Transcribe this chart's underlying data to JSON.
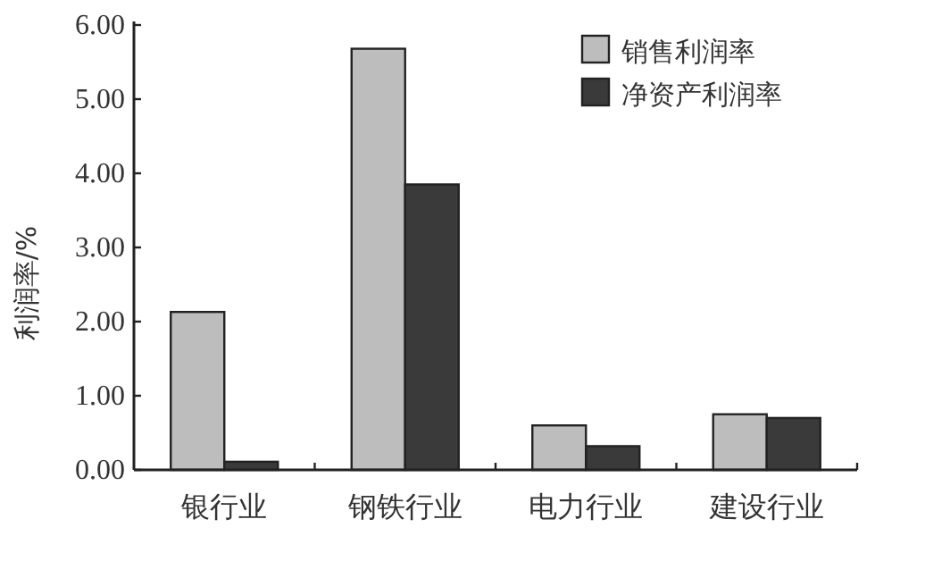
{
  "chart_data": {
    "type": "bar",
    "ylabel": "利润率/%",
    "categories": [
      "银行业",
      "钢铁行业",
      "电力行业",
      "建设行业"
    ],
    "series": [
      {
        "name": "销售利润率",
        "color": "#bdbdbd",
        "values": [
          2.13,
          5.68,
          0.6,
          0.75
        ]
      },
      {
        "name": "净资产利润率",
        "color": "#3a3a3a",
        "values": [
          0.11,
          3.85,
          0.32,
          0.7
        ]
      }
    ],
    "ylim": [
      0,
      6
    ],
    "yticks": [
      {
        "value": 0,
        "label": "0.00"
      },
      {
        "value": 1,
        "label": "1.00"
      },
      {
        "value": 2,
        "label": "2.00"
      },
      {
        "value": 3,
        "label": "3.00"
      },
      {
        "value": 4,
        "label": "4.00"
      },
      {
        "value": 5,
        "label": "5.00"
      },
      {
        "value": 6,
        "label": "6.00"
      }
    ],
    "legend": "top right",
    "grid": false
  }
}
